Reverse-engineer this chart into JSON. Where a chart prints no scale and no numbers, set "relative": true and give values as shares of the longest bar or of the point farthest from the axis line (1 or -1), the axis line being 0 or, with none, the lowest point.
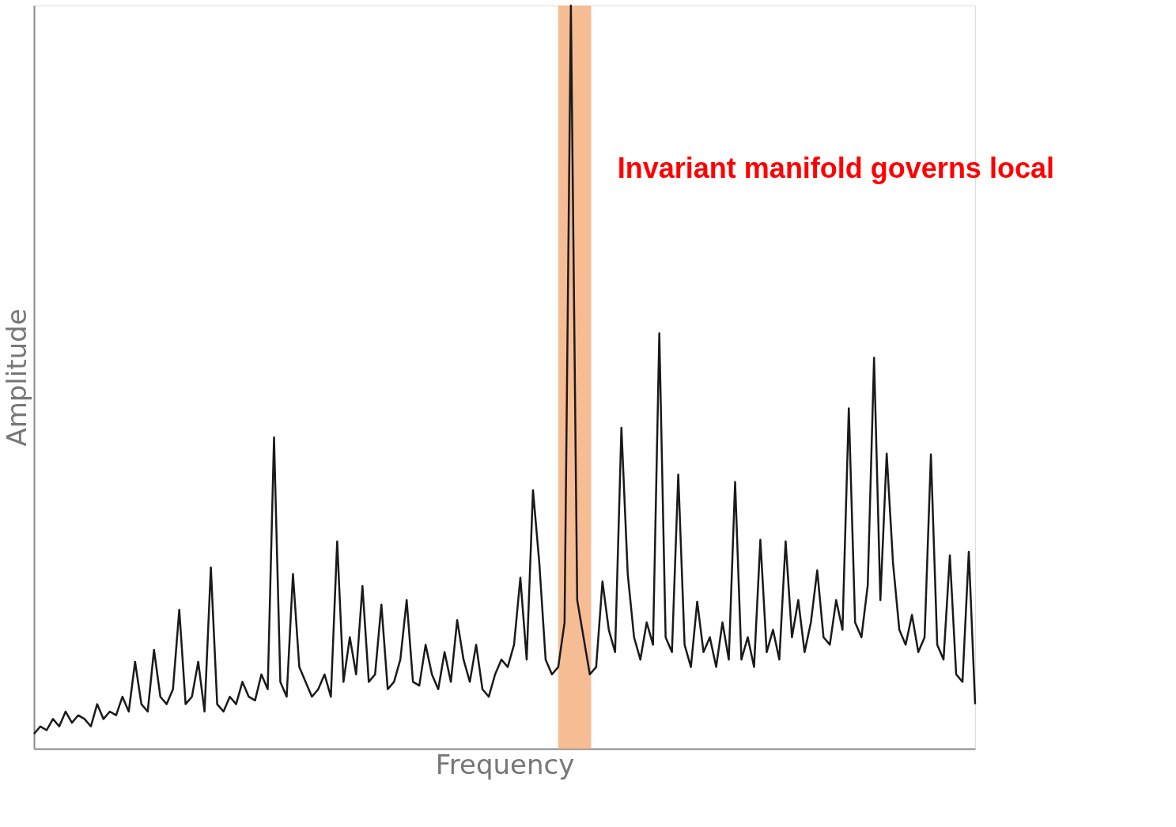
{
  "chart_data": {
    "type": "line",
    "relative": true,
    "xlabel": "Frequency",
    "ylabel": "Amplitude",
    "color": "#1a1a1a",
    "categories": [
      null,
      null,
      null,
      null,
      null,
      null,
      null,
      null,
      null,
      null,
      null,
      null,
      null,
      null,
      null,
      null,
      null,
      null,
      null,
      null,
      null,
      null,
      null,
      null,
      null,
      null,
      null,
      null,
      null,
      null,
      null,
      null,
      null,
      null,
      null,
      null,
      null,
      null,
      null,
      null,
      null,
      null,
      null,
      null,
      null,
      null,
      null,
      null,
      null,
      null,
      null,
      null,
      null,
      null,
      null,
      null,
      null,
      null,
      null,
      null,
      null,
      null,
      null,
      null,
      null,
      null,
      null,
      null,
      null,
      null,
      null,
      null,
      null,
      null,
      null,
      null,
      null,
      null,
      null,
      null,
      null,
      null,
      null,
      null,
      null,
      null,
      null,
      null,
      null,
      null,
      null,
      null,
      null,
      null,
      null,
      null,
      null,
      null,
      null,
      null,
      null,
      null,
      null,
      null,
      null,
      null,
      null,
      null,
      null,
      null,
      null,
      null,
      null,
      null,
      null,
      null,
      null,
      null,
      null,
      null,
      null,
      null,
      null,
      null,
      null,
      null,
      null,
      null,
      null,
      null,
      null,
      null,
      null,
      null,
      null,
      null,
      null,
      null,
      null,
      null,
      null,
      null,
      null,
      null,
      null,
      null,
      null,
      null,
      null,
      null
    ],
    "values": [
      0.02,
      0.03,
      0.025,
      0.04,
      0.03,
      0.05,
      0.035,
      0.045,
      0.04,
      0.03,
      0.06,
      0.04,
      0.05,
      0.045,
      0.07,
      0.05,
      0.117,
      0.06,
      0.05,
      0.133,
      0.07,
      0.06,
      0.08,
      0.187,
      0.06,
      0.07,
      0.117,
      0.05,
      0.244,
      0.06,
      0.05,
      0.07,
      0.06,
      0.09,
      0.07,
      0.065,
      0.1,
      0.08,
      0.419,
      0.09,
      0.07,
      0.235,
      0.11,
      0.09,
      0.07,
      0.08,
      0.1,
      0.07,
      0.279,
      0.09,
      0.15,
      0.1,
      0.219,
      0.09,
      0.1,
      0.194,
      0.08,
      0.09,
      0.12,
      0.2,
      0.09,
      0.085,
      0.14,
      0.1,
      0.08,
      0.13,
      0.09,
      0.173,
      0.12,
      0.09,
      0.14,
      0.08,
      0.07,
      0.1,
      0.12,
      0.11,
      0.14,
      0.23,
      0.12,
      0.348,
      0.25,
      0.12,
      0.1,
      0.11,
      0.17,
      1.0,
      0.2,
      0.15,
      0.1,
      0.11,
      0.225,
      0.16,
      0.13,
      0.432,
      0.235,
      0.15,
      0.12,
      0.17,
      0.14,
      0.559,
      0.15,
      0.13,
      0.369,
      0.14,
      0.11,
      0.198,
      0.13,
      0.15,
      0.11,
      0.17,
      0.12,
      0.359,
      0.12,
      0.15,
      0.11,
      0.281,
      0.13,
      0.16,
      0.12,
      0.279,
      0.15,
      0.2,
      0.13,
      0.17,
      0.24,
      0.15,
      0.14,
      0.2,
      0.16,
      0.458,
      0.17,
      0.15,
      0.22,
      0.526,
      0.2,
      0.397,
      0.25,
      0.16,
      0.14,
      0.18,
      0.13,
      0.15,
      0.396,
      0.14,
      0.12,
      0.26,
      0.1,
      0.09,
      0.265,
      0.06
    ],
    "annotations": [
      "Invariant manifold governs local"
    ],
    "grid": false
  }
}
